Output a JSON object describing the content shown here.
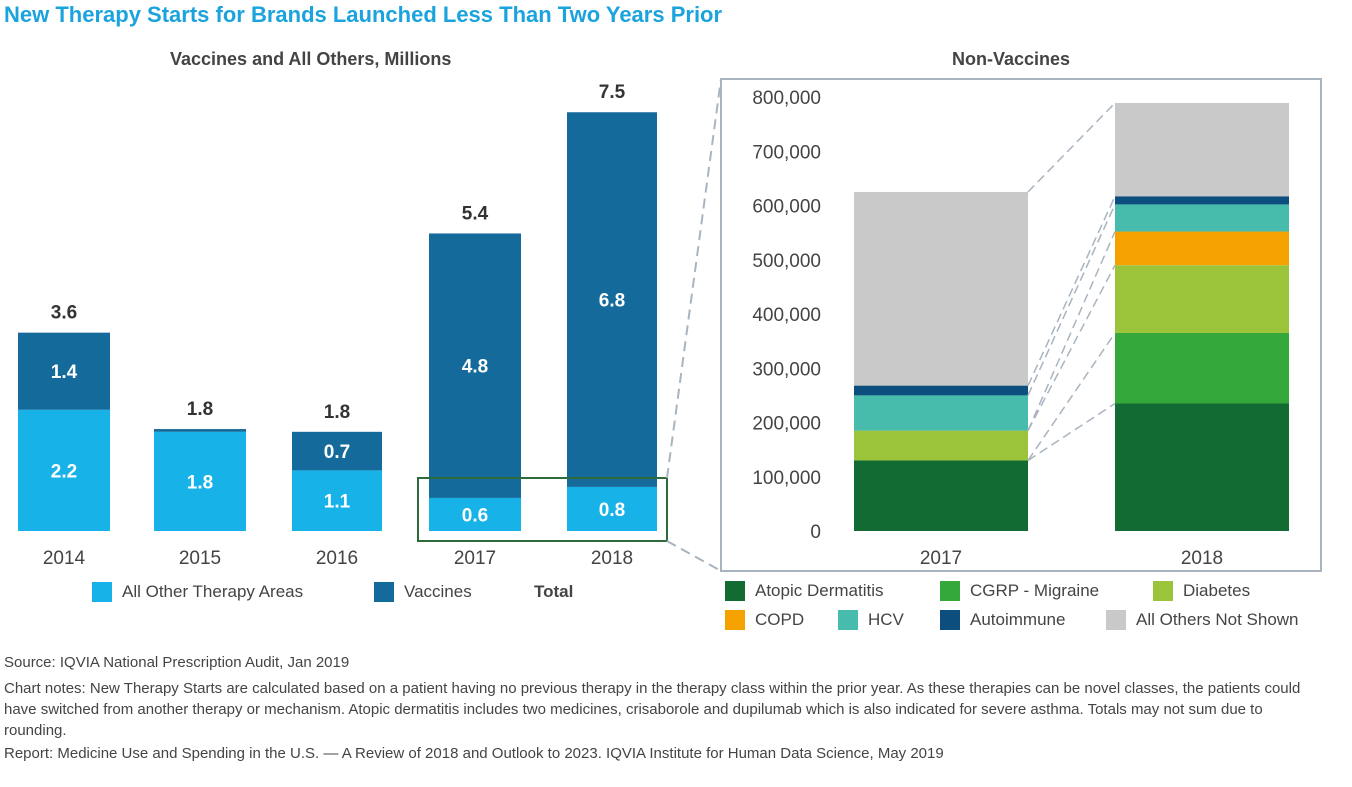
{
  "title": "New Therapy Starts for Brands Launched Less Than Two Years Prior",
  "colors": {
    "title": "#1aa3dd",
    "all_other": "#17b3e8",
    "vaccines": "#156a9c",
    "frame": "#a9b4c0",
    "highlight": "#2e6b3a"
  },
  "chart_data": [
    {
      "type": "bar",
      "stacked": true,
      "title": "Vaccines and All Others, Millions",
      "categories": [
        "2014",
        "2015",
        "2016",
        "2017",
        "2018"
      ],
      "series": [
        {
          "name": "All Other Therapy Areas",
          "values": [
            2.2,
            1.8,
            1.1,
            0.6,
            0.8
          ],
          "labels": [
            "2.2",
            "1.8",
            "1.1",
            "0.6",
            "0.8"
          ],
          "color": "#17b3e8"
        },
        {
          "name": "Vaccines",
          "values": [
            1.4,
            0.05,
            0.7,
            4.8,
            6.8
          ],
          "labels": [
            "1.4",
            "",
            "0.7",
            "4.8",
            "6.8"
          ],
          "color": "#156a9c"
        }
      ],
      "totals": [
        3.6,
        1.8,
        1.8,
        5.4,
        7.5
      ],
      "total_labels": [
        "3.6",
        "1.8",
        "1.8",
        "5.4",
        "7.5"
      ],
      "legend": [
        {
          "label": "All Other Therapy Areas",
          "color": "#17b3e8"
        },
        {
          "label": "Vaccines",
          "color": "#156a9c"
        },
        {
          "label": "Total",
          "color": ""
        }
      ],
      "ylim": [
        0,
        7.7
      ]
    },
    {
      "type": "bar",
      "stacked": true,
      "title": "Non-Vaccines",
      "categories": [
        "2017",
        "2018"
      ],
      "series": [
        {
          "name": "Atopic Dermatitis",
          "values": [
            130000,
            235000
          ],
          "color": "#116b33"
        },
        {
          "name": "CGRP - Migraine",
          "values": [
            0,
            130000
          ],
          "color": "#35a83c"
        },
        {
          "name": "Diabetes",
          "values": [
            55000,
            125000
          ],
          "color": "#9cc43a"
        },
        {
          "name": "COPD",
          "values": [
            0,
            62000
          ],
          "color": "#f5a100"
        },
        {
          "name": "HCV",
          "values": [
            65000,
            50000
          ],
          "color": "#47bbac"
        },
        {
          "name": "Autoimmune",
          "values": [
            18000,
            15000
          ],
          "color": "#0c4f7e"
        },
        {
          "name": "All Others Not Shown",
          "values": [
            357000,
            172000
          ],
          "color": "#c9c9c9"
        }
      ],
      "yticks": [
        "0",
        "100,000",
        "200,000",
        "300,000",
        "400,000",
        "500,000",
        "600,000",
        "700,000",
        "800,000"
      ],
      "ylim": [
        0,
        800000
      ]
    }
  ],
  "notes": {
    "source": "Source: IQVIA National Prescription Audit, Jan 2019",
    "chart_notes": "Chart notes: New Therapy Starts are calculated based on a patient having no previous therapy in the therapy class within the prior year. As these therapies can be novel classes, the patients could have switched from another therapy or mechanism. Atopic dermatitis includes two medicines, crisaborole and dupilumab which is also indicated for severe asthma. Totals may not sum due to rounding.",
    "report": "Report: Medicine Use and Spending in the U.S. — A Review of 2018 and Outlook to 2023. IQVIA Institute for Human Data Science, May 2019"
  }
}
